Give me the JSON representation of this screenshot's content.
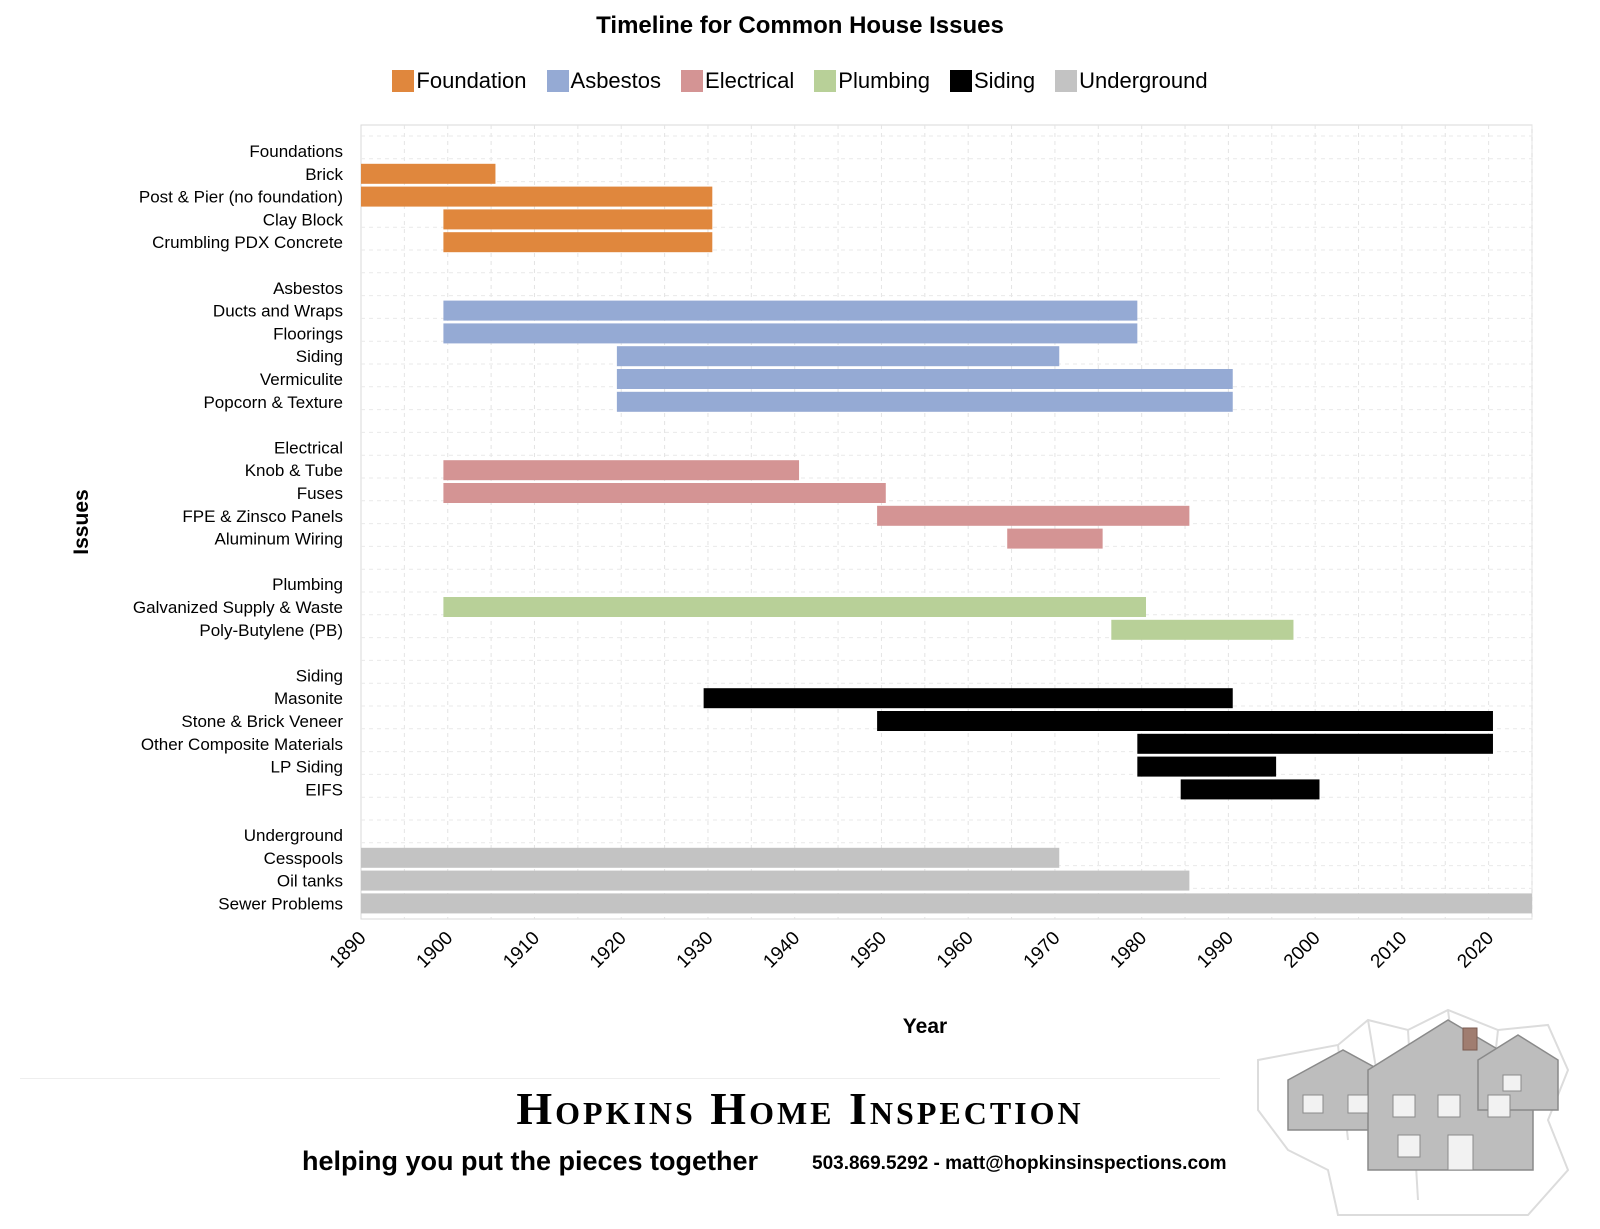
{
  "chart_data": {
    "type": "gantt",
    "title": "Timeline for Common House Issues",
    "xlabel": "Year",
    "ylabel": "Issues",
    "xlim": [
      1890,
      2025
    ],
    "x_ticks": [
      1890,
      1900,
      1910,
      1920,
      1930,
      1940,
      1950,
      1960,
      1970,
      1980,
      1990,
      2000,
      2010,
      2020
    ],
    "grid": true,
    "legend_position": "top",
    "legend": [
      {
        "name": "Foundation",
        "color": "#E0873D"
      },
      {
        "name": "Asbestos",
        "color": "#95AAD4"
      },
      {
        "name": "Electrical",
        "color": "#D49494"
      },
      {
        "name": "Plumbing",
        "color": "#B8D098"
      },
      {
        "name": "Siding",
        "color": "#000000"
      },
      {
        "name": "Underground",
        "color": "#C3C3C3"
      }
    ],
    "rows": [
      {
        "label": "Foundations"
      },
      {
        "label": "Brick",
        "category": "Foundation",
        "start": 1890,
        "end": 1905.5
      },
      {
        "label": "Post & Pier (no foundation)",
        "category": "Foundation",
        "start": 1890,
        "end": 1930.5
      },
      {
        "label": "Clay Block",
        "category": "Foundation",
        "start": 1899.5,
        "end": 1930.5
      },
      {
        "label": "Crumbling PDX Concrete",
        "category": "Foundation",
        "start": 1899.5,
        "end": 1930.5
      },
      {
        "label": ""
      },
      {
        "label": "Asbestos"
      },
      {
        "label": "Ducts and Wraps",
        "category": "Asbestos",
        "start": 1899.5,
        "end": 1979.5
      },
      {
        "label": "Floorings",
        "category": "Asbestos",
        "start": 1899.5,
        "end": 1979.5
      },
      {
        "label": "Siding",
        "category": "Asbestos",
        "start": 1919.5,
        "end": 1970.5
      },
      {
        "label": "Vermiculite",
        "category": "Asbestos",
        "start": 1919.5,
        "end": 1990.5
      },
      {
        "label": "Popcorn & Texture",
        "category": "Asbestos",
        "start": 1919.5,
        "end": 1990.5
      },
      {
        "label": ""
      },
      {
        "label": "Electrical"
      },
      {
        "label": "Knob & Tube",
        "category": "Electrical",
        "start": 1899.5,
        "end": 1940.5
      },
      {
        "label": "Fuses",
        "category": "Electrical",
        "start": 1899.5,
        "end": 1950.5
      },
      {
        "label": "FPE & Zinsco Panels",
        "category": "Electrical",
        "start": 1949.5,
        "end": 1985.5
      },
      {
        "label": "Aluminum Wiring",
        "category": "Electrical",
        "start": 1964.5,
        "end": 1975.5
      },
      {
        "label": ""
      },
      {
        "label": "Plumbing"
      },
      {
        "label": "Galvanized Supply & Waste",
        "category": "Plumbing",
        "start": 1899.5,
        "end": 1980.5
      },
      {
        "label": "Poly-Butylene (PB)",
        "category": "Plumbing",
        "start": 1976.5,
        "end": 1997.5
      },
      {
        "label": ""
      },
      {
        "label": "Siding"
      },
      {
        "label": "Masonite",
        "category": "Siding",
        "start": 1929.5,
        "end": 1990.5
      },
      {
        "label": "Stone & Brick Veneer",
        "category": "Siding",
        "start": 1949.5,
        "end": 2020.5
      },
      {
        "label": "Other Composite Materials",
        "category": "Siding",
        "start": 1979.5,
        "end": 2020.5
      },
      {
        "label": "LP Siding",
        "category": "Siding",
        "start": 1979.5,
        "end": 1995.5
      },
      {
        "label": "EIFS",
        "category": "Siding",
        "start": 1984.5,
        "end": 2000.5
      },
      {
        "label": ""
      },
      {
        "label": "Underground"
      },
      {
        "label": "Cesspools",
        "category": "Underground",
        "start": 1890,
        "end": 1970.5
      },
      {
        "label": "Oil tanks",
        "category": "Underground",
        "start": 1890,
        "end": 1985.5
      },
      {
        "label": "Sewer Problems",
        "category": "Underground",
        "start": 1890,
        "end": 2025
      }
    ]
  },
  "footer": {
    "brand": "Hopkins Home Inspection",
    "tagline": "helping you put the pieces together",
    "contact": "503.869.5292 - matt@hopkinsinspections.com"
  },
  "logo": {
    "icon": "house-puzzle-icon"
  }
}
